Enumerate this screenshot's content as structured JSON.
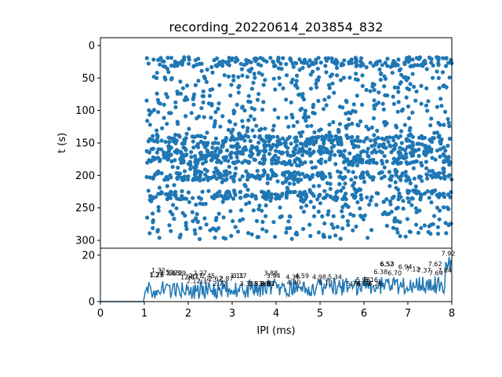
{
  "chart_data": [
    {
      "type": "scatter",
      "title": "recording_20220614_203854_832",
      "ylabel": "t (s)",
      "xlim": [
        0,
        8
      ],
      "ylim": [
        312,
        -12
      ],
      "yaxis_inverted": true,
      "yticks": [
        0,
        50,
        100,
        150,
        200,
        250,
        300
      ],
      "color": "#1f77b4",
      "marker": "filled circle",
      "points_summary": "Dense IPI raster: events spread over IPI 1.0-8.0 ms and t 18-298 s, denser bands near t=25, 145, 175, 200, 230 s"
    },
    {
      "type": "line",
      "xlabel": "IPI (ms)",
      "xlim": [
        0,
        8
      ],
      "ylim": [
        0,
        23
      ],
      "xticks": [
        0,
        1,
        2,
        3,
        4,
        5,
        6,
        7,
        8
      ],
      "yticks": [
        0,
        20
      ],
      "color": "#1f77b4",
      "peak_annotations": [
        {
          "x": 1.32,
          "y": 12.5,
          "label": "1.32"
        },
        {
          "x": 1.29,
          "y": 10.5,
          "label": "1.29"
        },
        {
          "x": 1.27,
          "y": 10.5,
          "label": "1.27"
        },
        {
          "x": 1.51,
          "y": 11.6,
          "label": "1.51"
        },
        {
          "x": 1.65,
          "y": 11.3,
          "label": "1.65"
        },
        {
          "x": 1.7,
          "y": 11.3,
          "label": "1.70"
        },
        {
          "x": 1.79,
          "y": 11.3,
          "label": "1.79"
        },
        {
          "x": 1.98,
          "y": 9.6,
          "label": "1.98"
        },
        {
          "x": 2.07,
          "y": 9.6,
          "label": "2.07"
        },
        {
          "x": 2.27,
          "y": 11.3,
          "label": "2.27"
        },
        {
          "x": 2.17,
          "y": 10.2,
          "label": "2.17"
        },
        {
          "x": 2.45,
          "y": 10.2,
          "label": "2.45"
        },
        {
          "x": 2.12,
          "y": 7.9,
          "label": "2.12"
        },
        {
          "x": 2.35,
          "y": 7.9,
          "label": "2.35"
        },
        {
          "x": 2.62,
          "y": 9.0,
          "label": "2.62"
        },
        {
          "x": 2.72,
          "y": 6.8,
          "label": "2.72"
        },
        {
          "x": 2.87,
          "y": 9.0,
          "label": "2.87"
        },
        {
          "x": 3.11,
          "y": 10.2,
          "label": "3.11"
        },
        {
          "x": 3.17,
          "y": 10.2,
          "label": "3.17"
        },
        {
          "x": 3.33,
          "y": 6.8,
          "label": "3.33"
        },
        {
          "x": 3.53,
          "y": 6.8,
          "label": "3.53"
        },
        {
          "x": 3.66,
          "y": 6.8,
          "label": "3.66"
        },
        {
          "x": 3.8,
          "y": 6.8,
          "label": "3.80"
        },
        {
          "x": 3.81,
          "y": 6.8,
          "label": "3.81"
        },
        {
          "x": 3.88,
          "y": 11.3,
          "label": "3.88"
        },
        {
          "x": 3.94,
          "y": 10.2,
          "label": "3.94"
        },
        {
          "x": 4.38,
          "y": 9.6,
          "label": "4.38"
        },
        {
          "x": 4.59,
          "y": 10.2,
          "label": "4.59"
        },
        {
          "x": 4.4,
          "y": 7.3,
          "label": "4.40"
        },
        {
          "x": 4.98,
          "y": 9.6,
          "label": "4.98"
        },
        {
          "x": 5.13,
          "y": 7.3,
          "label": "5.13"
        },
        {
          "x": 5.34,
          "y": 9.6,
          "label": "5.34"
        },
        {
          "x": 5.76,
          "y": 6.8,
          "label": "5.76"
        },
        {
          "x": 5.98,
          "y": 8.5,
          "label": "5.98"
        },
        {
          "x": 6.0,
          "y": 6.8,
          "label": "6.00"
        },
        {
          "x": 6.16,
          "y": 8.5,
          "label": "6.16"
        },
        {
          "x": 6.26,
          "y": 6.8,
          "label": "6.26"
        },
        {
          "x": 6.38,
          "y": 11.9,
          "label": "6.38"
        },
        {
          "x": 6.52,
          "y": 15.3,
          "label": "6.52"
        },
        {
          "x": 6.53,
          "y": 15.3,
          "label": "6.53"
        },
        {
          "x": 6.7,
          "y": 11.3,
          "label": "6.70"
        },
        {
          "x": 6.94,
          "y": 14.1,
          "label": "6.94"
        },
        {
          "x": 7.12,
          "y": 13.0,
          "label": "7.12"
        },
        {
          "x": 7.37,
          "y": 12.5,
          "label": "7.37"
        },
        {
          "x": 7.62,
          "y": 15.3,
          "label": "7.62"
        },
        {
          "x": 7.64,
          "y": 11.3,
          "label": "7.64"
        },
        {
          "x": 7.84,
          "y": 12.5,
          "label": "7.84"
        },
        {
          "x": 7.92,
          "y": 19.8,
          "label": "7.92"
        }
      ]
    }
  ]
}
